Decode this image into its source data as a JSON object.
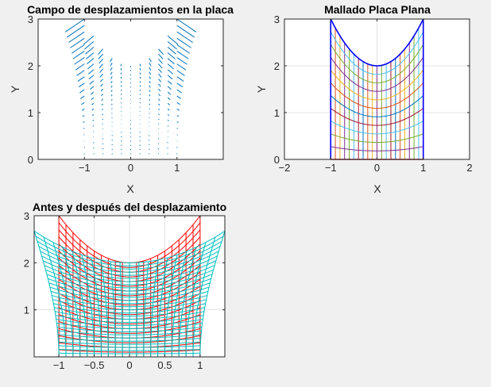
{
  "chart_data": [
    {
      "type": "quiver",
      "title": "Campo de desplazamientos en la placa",
      "xlabel": "X",
      "ylabel": "Y",
      "xlim": [
        -2,
        2
      ],
      "ylim": [
        0,
        3
      ],
      "xticks": [
        -1,
        0,
        1
      ],
      "yticks": [
        0,
        1,
        2,
        3
      ],
      "grid": false,
      "plate": {
        "x_range": [
          -1,
          1
        ],
        "bottom_y": 0,
        "top_curve": "y = 2 + x^2"
      },
      "arrow_color": "#0072bd"
    },
    {
      "type": "line",
      "title": "Mallado Placa Plana",
      "xlabel": "X",
      "ylabel": "Y",
      "xlim": [
        -2,
        2
      ],
      "ylim": [
        0,
        3
      ],
      "xticks": [
        -2,
        -1,
        0,
        1,
        2
      ],
      "yticks": [
        0,
        1,
        2,
        3
      ],
      "grid": true,
      "plate": {
        "x_range": [
          -1,
          1
        ],
        "bottom_y": 0,
        "top_curve": "y = 2 + x^2"
      },
      "mesh_lines": 11,
      "outline_color": "#0000ff",
      "line_colors": [
        "#0072bd",
        "#d95319",
        "#edb120",
        "#7e2f8e",
        "#77ac30",
        "#4dbeee",
        "#a2142f"
      ]
    },
    {
      "type": "line",
      "title": "Antes y después del desplazamiento",
      "xlabel": "",
      "ylabel": "",
      "xlim": [
        -1.35,
        1.35
      ],
      "ylim": [
        0,
        3
      ],
      "xticks": [
        -1,
        -0.5,
        0,
        0.5,
        1
      ],
      "yticks": [
        1,
        2,
        3
      ],
      "grid": true,
      "series": [
        {
          "color": "#ff0000",
          "mesh": "original plate, y from 0 to 2 + x^2"
        },
        {
          "color": "#00bfbf",
          "mesh": "deformed plate, bottom x in [-1, 1] at y = 0, top edge y = 2 + 0.37 x^2 over x in [-1.35, 1.35]"
        }
      ]
    }
  ]
}
